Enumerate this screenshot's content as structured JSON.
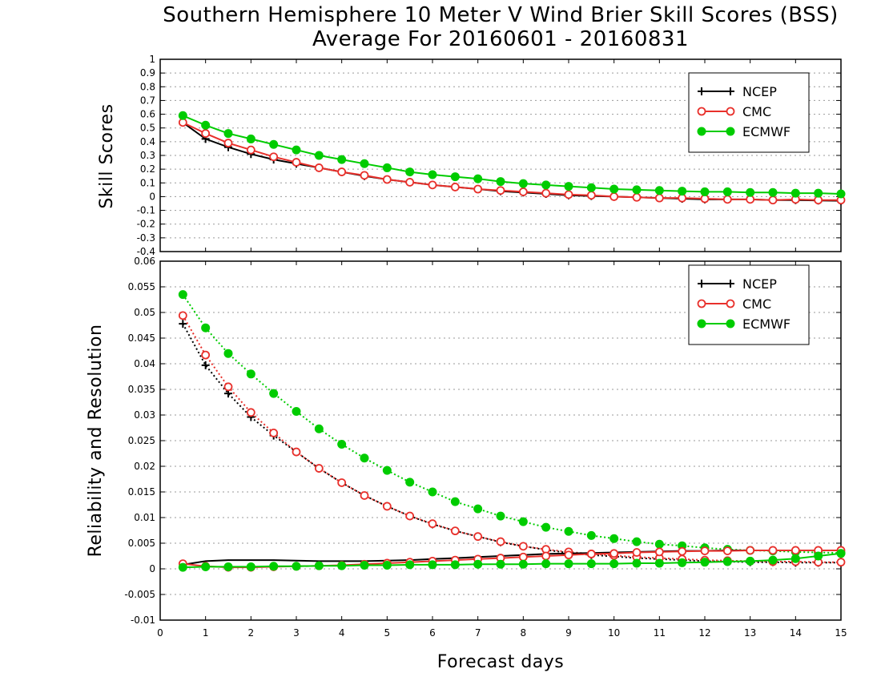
{
  "title": "Southern Hemisphere 10 Meter V Wind Brier Skill Scores (BSS)",
  "subtitle": "Average For 20160601 - 20160831",
  "xlabel": "Forecast days",
  "colors": {
    "NCEP": "#000000",
    "CMC": "#e8302b",
    "ECMWF": "#00cc00"
  },
  "chart_data": [
    {
      "type": "line",
      "ylabel": "Skill Scores",
      "xlim": [
        0,
        15
      ],
      "ylim": [
        -0.4,
        1
      ],
      "x_ticks": [
        "0",
        "1",
        "2",
        "3",
        "4",
        "5",
        "6",
        "7",
        "8",
        "9",
        "10",
        "11",
        "12",
        "13",
        "14",
        "15"
      ],
      "y_ticks": [
        "-0.4",
        "-0.3",
        "-0.2",
        "-0.1",
        "0",
        "0.1",
        "0.2",
        "0.3",
        "0.4",
        "0.5",
        "0.6",
        "0.7",
        "0.8",
        "0.9",
        "1"
      ],
      "grid": true,
      "legend_position": "top-right",
      "x": [
        0.5,
        1,
        1.5,
        2,
        2.5,
        3,
        3.5,
        4,
        4.5,
        5,
        5.5,
        6,
        6.5,
        7,
        7.5,
        8,
        8.5,
        9,
        9.5,
        10,
        10.5,
        11,
        11.5,
        12,
        12.5,
        13,
        13.5,
        14,
        14.5,
        15
      ],
      "series": [
        {
          "name": "NCEP",
          "marker": "plus",
          "line": "solid",
          "values": [
            0.54,
            0.42,
            0.36,
            0.31,
            0.27,
            0.24,
            0.21,
            0.18,
            0.15,
            0.125,
            0.105,
            0.085,
            0.07,
            0.055,
            0.04,
            0.03,
            0.02,
            0.01,
            0.005,
            0.0,
            -0.005,
            -0.01,
            -0.015,
            -0.02,
            -0.02,
            -0.02,
            -0.025,
            -0.025,
            -0.028,
            -0.03
          ]
        },
        {
          "name": "CMC",
          "marker": "open-circle",
          "line": "solid",
          "values": [
            0.54,
            0.46,
            0.39,
            0.34,
            0.29,
            0.25,
            0.21,
            0.18,
            0.155,
            0.125,
            0.105,
            0.085,
            0.07,
            0.055,
            0.045,
            0.035,
            0.025,
            0.015,
            0.01,
            0.0,
            -0.005,
            -0.01,
            -0.01,
            -0.015,
            -0.02,
            -0.02,
            -0.025,
            -0.02,
            -0.025,
            -0.025
          ]
        },
        {
          "name": "ECMWF",
          "marker": "filled-circle",
          "line": "solid",
          "values": [
            0.59,
            0.52,
            0.46,
            0.42,
            0.38,
            0.34,
            0.3,
            0.27,
            0.24,
            0.21,
            0.18,
            0.16,
            0.145,
            0.13,
            0.11,
            0.095,
            0.085,
            0.075,
            0.065,
            0.055,
            0.05,
            0.045,
            0.04,
            0.035,
            0.035,
            0.03,
            0.03,
            0.025,
            0.025,
            0.02
          ]
        }
      ]
    },
    {
      "type": "line",
      "ylabel": "Reliability and Resolution",
      "xlim": [
        0,
        15
      ],
      "ylim": [
        -0.01,
        0.06
      ],
      "x_ticks": [
        "0",
        "1",
        "2",
        "3",
        "4",
        "5",
        "6",
        "7",
        "8",
        "9",
        "10",
        "11",
        "12",
        "13",
        "14",
        "15"
      ],
      "y_ticks": [
        "-0.01",
        "-0.005",
        "0",
        "0.005",
        "0.01",
        "0.015",
        "0.02",
        "0.025",
        "0.03",
        "0.035",
        "0.04",
        "0.045",
        "0.05",
        "0.055",
        "0.06"
      ],
      "grid": true,
      "legend_position": "top-right",
      "x": [
        0.5,
        1,
        1.5,
        2,
        2.5,
        3,
        3.5,
        4,
        4.5,
        5,
        5.5,
        6,
        6.5,
        7,
        7.5,
        8,
        8.5,
        9,
        9.5,
        10,
        10.5,
        11,
        11.5,
        12,
        12.5,
        13,
        13.5,
        14,
        14.5,
        15
      ],
      "series": [
        {
          "name": "NCEP",
          "group": "resolution",
          "marker": "plus",
          "line": "dotted",
          "values": [
            0.0478,
            0.0397,
            0.0342,
            0.0296,
            0.026,
            0.0228,
            0.0196,
            0.0168,
            0.0143,
            0.0122,
            0.0103,
            0.0087,
            0.0074,
            0.0063,
            0.0052,
            0.0044,
            0.0037,
            0.0031,
            0.0027,
            0.0024,
            0.0021,
            0.0019,
            0.0017,
            0.0015,
            0.0014,
            0.0013,
            0.0013,
            0.0012,
            0.0012,
            0.0012
          ]
        },
        {
          "name": "CMC",
          "group": "resolution",
          "marker": "open-circle",
          "line": "dotted",
          "values": [
            0.0494,
            0.0417,
            0.0355,
            0.0305,
            0.0265,
            0.0228,
            0.0196,
            0.0168,
            0.0143,
            0.0122,
            0.0103,
            0.0088,
            0.0074,
            0.0063,
            0.0053,
            0.0044,
            0.0038,
            0.0033,
            0.0029,
            0.0026,
            0.0023,
            0.0021,
            0.0019,
            0.0017,
            0.0016,
            0.0015,
            0.0014,
            0.0014,
            0.0013,
            0.0013
          ]
        },
        {
          "name": "ECMWF",
          "group": "resolution",
          "marker": "filled-circle",
          "line": "dotted",
          "values": [
            0.0535,
            0.047,
            0.042,
            0.038,
            0.0342,
            0.0307,
            0.0273,
            0.0243,
            0.0216,
            0.0192,
            0.0169,
            0.015,
            0.0131,
            0.0117,
            0.0103,
            0.0092,
            0.0081,
            0.0073,
            0.0065,
            0.0059,
            0.0053,
            0.0048,
            0.0045,
            0.0041,
            0.0038,
            0.0036,
            0.0035,
            0.0033,
            0.0032,
            0.0031
          ]
        },
        {
          "name": "NCEP",
          "group": "reliability",
          "marker": "none",
          "line": "solid",
          "values": [
            0.0008,
            0.0015,
            0.0017,
            0.0017,
            0.0017,
            0.0016,
            0.0015,
            0.0015,
            0.0015,
            0.0016,
            0.0017,
            0.0019,
            0.0021,
            0.0023,
            0.0025,
            0.0027,
            0.0029,
            0.003,
            0.0031,
            0.0032,
            0.0033,
            0.0034,
            0.0035,
            0.0035,
            0.0036,
            0.0036,
            0.0036,
            0.0036,
            0.0036,
            0.0036
          ]
        },
        {
          "name": "CMC",
          "group": "reliability",
          "marker": "open-circle",
          "line": "solid",
          "values": [
            0.001,
            0.0005,
            0.0003,
            0.0003,
            0.0004,
            0.0005,
            0.0006,
            0.0007,
            0.0009,
            0.0011,
            0.0013,
            0.0015,
            0.0017,
            0.0019,
            0.0021,
            0.0023,
            0.0025,
            0.0027,
            0.0029,
            0.003,
            0.0032,
            0.0033,
            0.0034,
            0.0035,
            0.0035,
            0.0036,
            0.0036,
            0.0036,
            0.0036,
            0.0036
          ]
        },
        {
          "name": "ECMWF",
          "group": "reliability",
          "marker": "filled-circle",
          "line": "solid",
          "values": [
            0.0003,
            0.0004,
            0.0004,
            0.0004,
            0.0005,
            0.0005,
            0.0006,
            0.0006,
            0.0007,
            0.0007,
            0.0008,
            0.0008,
            0.0008,
            0.0009,
            0.0009,
            0.0009,
            0.001,
            0.001,
            0.001,
            0.001,
            0.0011,
            0.0011,
            0.0012,
            0.0013,
            0.0014,
            0.0015,
            0.0017,
            0.002,
            0.0025,
            0.003
          ]
        }
      ]
    }
  ],
  "legends": [
    [
      "NCEP",
      "CMC",
      "ECMWF"
    ],
    [
      "NCEP",
      "CMC",
      "ECMWF"
    ]
  ]
}
